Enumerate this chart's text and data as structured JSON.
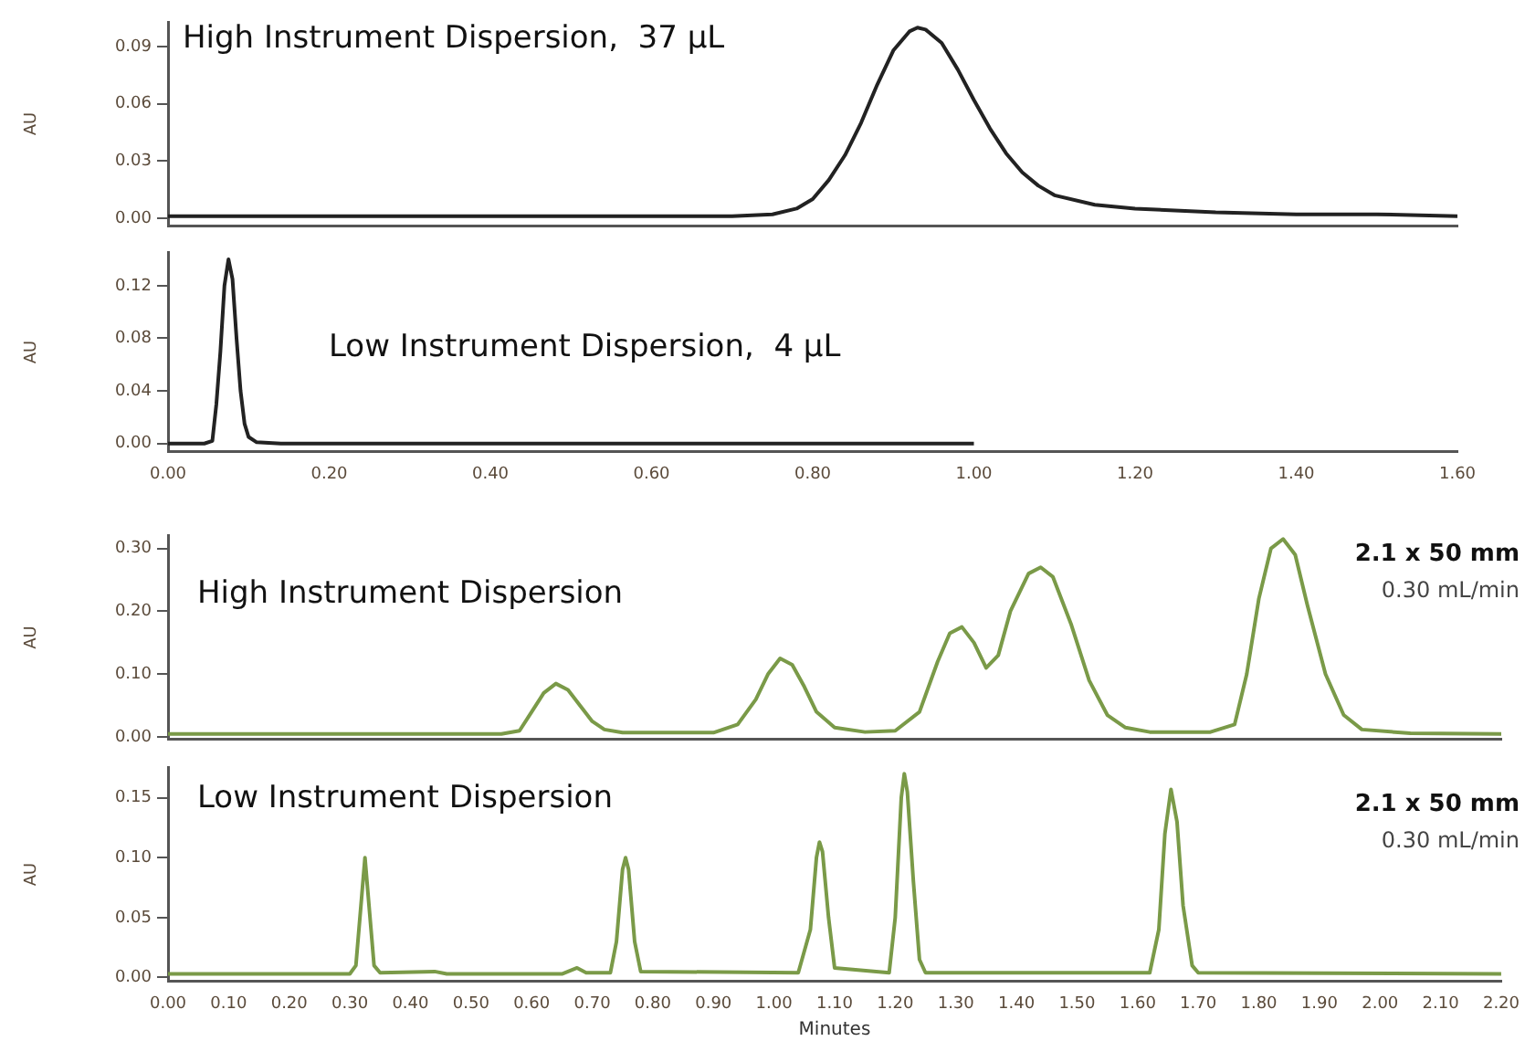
{
  "chart_data": [
    {
      "type": "line",
      "ylabel": "AU",
      "annotations": [
        "High Instrument Dispersion,  37 µL"
      ],
      "xlim": [
        0,
        1.6
      ],
      "ylim": [
        -0.004,
        0.103
      ],
      "yticks": [
        {
          "value": 0,
          "label": "0.00"
        },
        {
          "value": 0.03,
          "label": "0.03"
        },
        {
          "value": 0.06,
          "label": "0.06"
        },
        {
          "value": 0.09,
          "label": "0.09"
        }
      ],
      "tick_labels": "y",
      "grid": false,
      "legend": false,
      "marker": "none",
      "series": [
        {
          "color": "#222222",
          "x": [
            0,
            0.4,
            0.7,
            0.75,
            0.78,
            0.8,
            0.82,
            0.84,
            0.86,
            0.88,
            0.9,
            0.92,
            0.93,
            0.94,
            0.96,
            0.98,
            1.0,
            1.02,
            1.04,
            1.06,
            1.08,
            1.1,
            1.15,
            1.2,
            1.3,
            1.4,
            1.5,
            1.6
          ],
          "values": [
            0.001,
            0.001,
            0.001,
            0.002,
            0.005,
            0.01,
            0.02,
            0.033,
            0.05,
            0.07,
            0.088,
            0.098,
            0.1,
            0.099,
            0.092,
            0.078,
            0.062,
            0.047,
            0.034,
            0.024,
            0.017,
            0.012,
            0.007,
            0.005,
            0.003,
            0.002,
            0.002,
            0.001
          ]
        }
      ]
    },
    {
      "type": "line",
      "ylabel": "AU",
      "annotations": [
        "Low Instrument Dispersion,  4 µL"
      ],
      "xlim": [
        0,
        1.6
      ],
      "xticks": [
        {
          "value": 0,
          "label": "0.00"
        },
        {
          "value": 0.2,
          "label": "0.20"
        },
        {
          "value": 0.4,
          "label": "0.40"
        },
        {
          "value": 0.6,
          "label": "0.60"
        },
        {
          "value": 0.8,
          "label": "0.80"
        },
        {
          "value": 1.0,
          "label": "1.00"
        },
        {
          "value": 1.2,
          "label": "1.20"
        },
        {
          "value": 1.4,
          "label": "1.40"
        },
        {
          "value": 1.6,
          "label": "1.60"
        }
      ],
      "ylim": [
        -0.006,
        0.145
      ],
      "yticks": [
        {
          "value": 0,
          "label": "0.00"
        },
        {
          "value": 0.04,
          "label": "0.04"
        },
        {
          "value": 0.08,
          "label": "0.08"
        },
        {
          "value": 0.12,
          "label": "0.12"
        }
      ],
      "grid": false,
      "legend": false,
      "marker": "none",
      "series": [
        {
          "color": "#222222",
          "x": [
            0,
            0.045,
            0.055,
            0.06,
            0.065,
            0.07,
            0.075,
            0.08,
            0.085,
            0.09,
            0.095,
            0.1,
            0.11,
            0.14,
            1.0
          ],
          "values": [
            0,
            0,
            0.002,
            0.03,
            0.07,
            0.12,
            0.14,
            0.125,
            0.08,
            0.04,
            0.015,
            0.005,
            0.001,
            0,
            0
          ]
        }
      ]
    },
    {
      "type": "line",
      "ylabel": "AU",
      "annotations": [
        "High Instrument Dispersion",
        "2.1 x 50 mm",
        "0.30 mL/min"
      ],
      "xlim": [
        0,
        2.2
      ],
      "ylim": [
        -0.003,
        0.32
      ],
      "yticks": [
        {
          "value": 0,
          "label": "0.00"
        },
        {
          "value": 0.1,
          "label": "0.10"
        },
        {
          "value": 0.2,
          "label": "0.20"
        },
        {
          "value": 0.3,
          "label": "0.30"
        }
      ],
      "tick_labels": "y",
      "grid": false,
      "legend": false,
      "marker": "none",
      "series": [
        {
          "color": "#7a9a48",
          "x": [
            0,
            0.55,
            0.58,
            0.6,
            0.62,
            0.64,
            0.66,
            0.68,
            0.7,
            0.72,
            0.75,
            0.9,
            0.94,
            0.97,
            0.99,
            1.01,
            1.03,
            1.05,
            1.07,
            1.1,
            1.15,
            1.2,
            1.24,
            1.27,
            1.29,
            1.31,
            1.33,
            1.35,
            1.37,
            1.39,
            1.42,
            1.44,
            1.46,
            1.49,
            1.52,
            1.55,
            1.58,
            1.62,
            1.72,
            1.76,
            1.78,
            1.8,
            1.82,
            1.84,
            1.86,
            1.88,
            1.91,
            1.94,
            1.97,
            2.05,
            2.2
          ],
          "values": [
            0.005,
            0.005,
            0.01,
            0.04,
            0.07,
            0.085,
            0.075,
            0.05,
            0.025,
            0.012,
            0.007,
            0.007,
            0.02,
            0.06,
            0.1,
            0.125,
            0.115,
            0.08,
            0.04,
            0.015,
            0.008,
            0.01,
            0.04,
            0.12,
            0.165,
            0.175,
            0.15,
            0.11,
            0.13,
            0.2,
            0.26,
            0.27,
            0.255,
            0.18,
            0.09,
            0.035,
            0.015,
            0.008,
            0.008,
            0.02,
            0.1,
            0.22,
            0.3,
            0.315,
            0.29,
            0.21,
            0.1,
            0.035,
            0.012,
            0.006,
            0.005
          ]
        }
      ]
    },
    {
      "type": "line",
      "ylabel": "AU",
      "xlabel": "Minutes",
      "annotations": [
        "Low Instrument Dispersion",
        "2.1 x 50 mm",
        "0.30 mL/min"
      ],
      "xlim": [
        0,
        2.2
      ],
      "xticks": [
        {
          "value": 0,
          "label": "0.00"
        },
        {
          "value": 0.1,
          "label": "0.10"
        },
        {
          "value": 0.2,
          "label": "0.20"
        },
        {
          "value": 0.3,
          "label": "0.30"
        },
        {
          "value": 0.4,
          "label": "0.40"
        },
        {
          "value": 0.5,
          "label": "0.50"
        },
        {
          "value": 0.6,
          "label": "0.60"
        },
        {
          "value": 0.7,
          "label": "0.70"
        },
        {
          "value": 0.8,
          "label": "0.80"
        },
        {
          "value": 0.9,
          "label": "0.90"
        },
        {
          "value": 1.0,
          "label": "1.00"
        },
        {
          "value": 1.1,
          "label": "1.10"
        },
        {
          "value": 1.2,
          "label": "1.20"
        },
        {
          "value": 1.3,
          "label": "1.30"
        },
        {
          "value": 1.4,
          "label": "1.40"
        },
        {
          "value": 1.5,
          "label": "1.50"
        },
        {
          "value": 1.6,
          "label": "1.60"
        },
        {
          "value": 1.7,
          "label": "1.70"
        },
        {
          "value": 1.8,
          "label": "1.80"
        },
        {
          "value": 1.9,
          "label": "1.90"
        },
        {
          "value": 2.0,
          "label": "2.00"
        },
        {
          "value": 2.1,
          "label": "2.10"
        },
        {
          "value": 2.2,
          "label": "2.20"
        }
      ],
      "ylim": [
        -0.003,
        0.175
      ],
      "yticks": [
        {
          "value": 0,
          "label": "0.00"
        },
        {
          "value": 0.05,
          "label": "0.05"
        },
        {
          "value": 0.1,
          "label": "0.10"
        },
        {
          "value": 0.15,
          "label": "0.15"
        }
      ],
      "grid": false,
      "legend": false,
      "marker": "none",
      "series": [
        {
          "color": "#7a9a48",
          "x": [
            0,
            0.3,
            0.31,
            0.32,
            0.325,
            0.33,
            0.34,
            0.35,
            0.44,
            0.46,
            0.65,
            0.675,
            0.69,
            0.73,
            0.74,
            0.75,
            0.755,
            0.76,
            0.77,
            0.78,
            1.04,
            1.06,
            1.07,
            1.075,
            1.08,
            1.09,
            1.1,
            1.19,
            1.2,
            1.21,
            1.215,
            1.22,
            1.23,
            1.24,
            1.25,
            1.62,
            1.635,
            1.645,
            1.655,
            1.665,
            1.675,
            1.69,
            1.7,
            2.2
          ],
          "values": [
            0.003,
            0.003,
            0.01,
            0.07,
            0.1,
            0.07,
            0.01,
            0.004,
            0.005,
            0.003,
            0.003,
            0.008,
            0.004,
            0.004,
            0.03,
            0.09,
            0.1,
            0.09,
            0.03,
            0.005,
            0.004,
            0.04,
            0.1,
            0.113,
            0.105,
            0.05,
            0.008,
            0.004,
            0.05,
            0.15,
            0.17,
            0.155,
            0.08,
            0.015,
            0.004,
            0.004,
            0.04,
            0.12,
            0.157,
            0.13,
            0.06,
            0.01,
            0.004,
            0.003
          ]
        }
      ]
    }
  ]
}
